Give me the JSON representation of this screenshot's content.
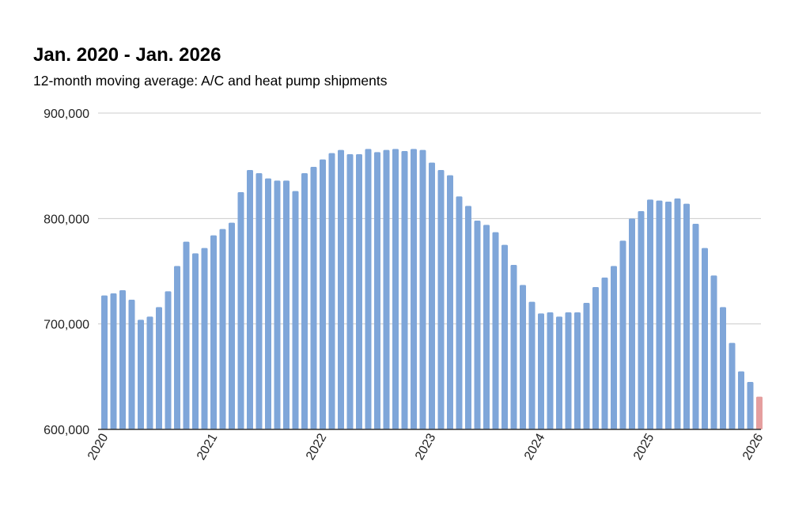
{
  "header": {
    "title": "Jan. 2020 - Jan. 2026",
    "subtitle": "12-month moving average: A/C and heat pump shipments"
  },
  "chart_data": {
    "type": "bar",
    "title": "Jan. 2020 - Jan. 2026",
    "subtitle": "12-month moving average: A/C and heat pump shipments",
    "xlabel": "",
    "ylabel": "",
    "ylim": [
      600000,
      900000
    ],
    "y_ticks": [
      600000,
      700000,
      800000,
      900000
    ],
    "y_tick_labels": [
      "600,000",
      "700,000",
      "800,000",
      "900,000"
    ],
    "x_tick_labels": [
      "2020",
      "2021",
      "2022",
      "2023",
      "2024",
      "2025",
      "2026"
    ],
    "x_tick_positions": [
      0,
      12,
      24,
      36,
      48,
      60,
      72
    ],
    "grid": true,
    "colors": {
      "bar": "#7fa6d9",
      "highlight": "#e59e9e",
      "grid": "#cccccc",
      "axis": "#333333"
    },
    "highlight_index": 72,
    "values": [
      727000,
      729000,
      732000,
      723000,
      704000,
      707000,
      716000,
      731000,
      755000,
      778000,
      767000,
      772000,
      784000,
      790000,
      796000,
      825000,
      846000,
      843000,
      838000,
      836000,
      836000,
      826000,
      843000,
      849000,
      856000,
      862000,
      865000,
      861000,
      861000,
      866000,
      863000,
      865000,
      866000,
      864000,
      866000,
      865000,
      853000,
      846000,
      841000,
      821000,
      812000,
      798000,
      794000,
      787000,
      775000,
      756000,
      737000,
      721000,
      710000,
      711000,
      707000,
      711000,
      711000,
      720000,
      735000,
      744000,
      755000,
      779000,
      800000,
      807000,
      818000,
      817000,
      816000,
      819000,
      814000,
      795000,
      772000,
      746000,
      716000,
      682000,
      655000,
      645000,
      631000
    ]
  }
}
